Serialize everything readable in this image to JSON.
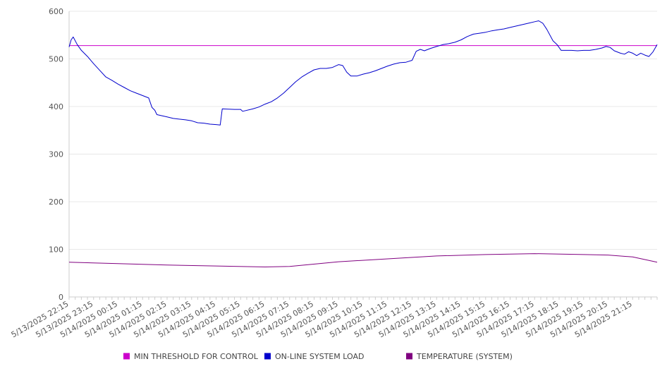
{
  "chart_data": {
    "type": "line",
    "title": "",
    "xlabel": "",
    "ylabel": "",
    "ylim": [
      0,
      600
    ],
    "y_ticks": [
      0,
      100,
      200,
      300,
      400,
      500,
      600
    ],
    "grid": "horizontal",
    "legend_position": "bottom",
    "x_tick_labels": [
      "5/13/2025 22:15",
      "5/13/2025 23:15",
      "5/14/2025 00:15",
      "5/14/2025 01:15",
      "5/14/2025 02:15",
      "5/14/2025 03:15",
      "5/14/2025 04:15",
      "5/14/2025 05:15",
      "5/14/2025 06:15",
      "5/14/2025 07:15",
      "5/14/2025 08:15",
      "5/14/2025 09:15",
      "5/14/2025 10:15",
      "5/14/2025 11:15",
      "5/14/2025 12:15",
      "5/14/2025 13:15",
      "5/14/2025 14:15",
      "5/14/2025 15:15",
      "5/14/2025 16:15",
      "5/14/2025 17:15",
      "5/14/2025 18:15",
      "5/14/2025 19:15",
      "5/14/2025 20:15",
      "5/14/2025 21:15"
    ],
    "x_start": "5/13/2025 22:15",
    "x_end": "5/14/2025 22:15",
    "series": [
      {
        "name": "MIN THRESHOLD FOR CONTROL",
        "color": "#cc00cc",
        "points": [
          [
            "5/13/2025 22:15",
            528
          ],
          [
            "5/14/2025 22:15",
            528
          ]
        ]
      },
      {
        "name": "ON-LINE SYSTEM LOAD",
        "color": "#0000cc",
        "points": [
          [
            "5/13/2025 22:15",
            525
          ],
          [
            "5/13/2025 22:20",
            540
          ],
          [
            "5/13/2025 22:25",
            546
          ],
          [
            "5/13/2025 22:35",
            530
          ],
          [
            "5/13/2025 22:45",
            518
          ],
          [
            "5/13/2025 23:00",
            505
          ],
          [
            "5/13/2025 23:15",
            490
          ],
          [
            "5/13/2025 23:30",
            476
          ],
          [
            "5/13/2025 23:45",
            462
          ],
          [
            "5/14/2025 00:00",
            455
          ],
          [
            "5/14/2025 00:15",
            447
          ],
          [
            "5/14/2025 00:30",
            440
          ],
          [
            "5/14/2025 00:45",
            433
          ],
          [
            "5/14/2025 01:00",
            428
          ],
          [
            "5/14/2025 01:15",
            423
          ],
          [
            "5/14/2025 01:30",
            418
          ],
          [
            "5/14/2025 01:38",
            398
          ],
          [
            "5/14/2025 01:45",
            392
          ],
          [
            "5/14/2025 01:50",
            383
          ],
          [
            "5/14/2025 02:15",
            378
          ],
          [
            "5/14/2025 02:30",
            375
          ],
          [
            "5/14/2025 03:00",
            372
          ],
          [
            "5/14/2025 03:15",
            370
          ],
          [
            "5/14/2025 03:30",
            366
          ],
          [
            "5/14/2025 03:45",
            365
          ],
          [
            "5/14/2025 04:00",
            363
          ],
          [
            "5/14/2025 04:15",
            362
          ],
          [
            "5/14/2025 04:25",
            361
          ],
          [
            "5/14/2025 04:30",
            395
          ],
          [
            "5/14/2025 05:00",
            394
          ],
          [
            "5/14/2025 05:15",
            394
          ],
          [
            "5/14/2025 05:20",
            390
          ],
          [
            "5/14/2025 05:45",
            395
          ],
          [
            "5/14/2025 06:00",
            399
          ],
          [
            "5/14/2025 06:15",
            405
          ],
          [
            "5/14/2025 06:30",
            410
          ],
          [
            "5/14/2025 06:45",
            418
          ],
          [
            "5/14/2025 07:00",
            428
          ],
          [
            "5/14/2025 07:15",
            440
          ],
          [
            "5/14/2025 07:30",
            452
          ],
          [
            "5/14/2025 07:45",
            462
          ],
          [
            "5/14/2025 08:00",
            470
          ],
          [
            "5/14/2025 08:15",
            477
          ],
          [
            "5/14/2025 08:30",
            480
          ],
          [
            "5/14/2025 08:45",
            480
          ],
          [
            "5/14/2025 09:00",
            482
          ],
          [
            "5/14/2025 09:15",
            488
          ],
          [
            "5/14/2025 09:25",
            486
          ],
          [
            "5/14/2025 09:35",
            472
          ],
          [
            "5/14/2025 09:45",
            464
          ],
          [
            "5/14/2025 10:00",
            464
          ],
          [
            "5/14/2025 10:15",
            468
          ],
          [
            "5/14/2025 10:30",
            471
          ],
          [
            "5/14/2025 10:45",
            475
          ],
          [
            "5/14/2025 11:00",
            480
          ],
          [
            "5/14/2025 11:15",
            485
          ],
          [
            "5/14/2025 11:30",
            489
          ],
          [
            "5/14/2025 11:45",
            492
          ],
          [
            "5/14/2025 12:00",
            493
          ],
          [
            "5/14/2025 12:15",
            497
          ],
          [
            "5/14/2025 12:25",
            516
          ],
          [
            "5/14/2025 12:35",
            520
          ],
          [
            "5/14/2025 12:45",
            517
          ],
          [
            "5/14/2025 13:00",
            522
          ],
          [
            "5/14/2025 13:15",
            526
          ],
          [
            "5/14/2025 13:30",
            530
          ],
          [
            "5/14/2025 13:45",
            532
          ],
          [
            "5/14/2025 14:00",
            535
          ],
          [
            "5/14/2025 14:15",
            540
          ],
          [
            "5/14/2025 14:30",
            547
          ],
          [
            "5/14/2025 14:45",
            552
          ],
          [
            "5/14/2025 15:00",
            554
          ],
          [
            "5/14/2025 15:15",
            556
          ],
          [
            "5/14/2025 15:30",
            559
          ],
          [
            "5/14/2025 15:45",
            561
          ],
          [
            "5/14/2025 16:00",
            563
          ],
          [
            "5/14/2025 16:15",
            566
          ],
          [
            "5/14/2025 16:30",
            569
          ],
          [
            "5/14/2025 16:45",
            572
          ],
          [
            "5/14/2025 17:00",
            575
          ],
          [
            "5/14/2025 17:15",
            578
          ],
          [
            "5/14/2025 17:25",
            580
          ],
          [
            "5/14/2025 17:35",
            575
          ],
          [
            "5/14/2025 17:45",
            562
          ],
          [
            "5/14/2025 18:00",
            538
          ],
          [
            "5/14/2025 18:10",
            530
          ],
          [
            "5/14/2025 18:20",
            518
          ],
          [
            "5/14/2025 18:30",
            518
          ],
          [
            "5/14/2025 18:45",
            518
          ],
          [
            "5/14/2025 19:00",
            517
          ],
          [
            "5/14/2025 19:15",
            518
          ],
          [
            "5/14/2025 19:30",
            518
          ],
          [
            "5/14/2025 19:45",
            520
          ],
          [
            "5/14/2025 20:00",
            523
          ],
          [
            "5/14/2025 20:10",
            526
          ],
          [
            "5/14/2025 20:20",
            524
          ],
          [
            "5/14/2025 20:30",
            517
          ],
          [
            "5/14/2025 20:45",
            512
          ],
          [
            "5/14/2025 20:55",
            510
          ],
          [
            "5/14/2025 21:05",
            515
          ],
          [
            "5/14/2025 21:15",
            512
          ],
          [
            "5/14/2025 21:25",
            507
          ],
          [
            "5/14/2025 21:35",
            512
          ],
          [
            "5/14/2025 21:45",
            508
          ],
          [
            "5/14/2025 21:55",
            505
          ],
          [
            "5/14/2025 22:05",
            515
          ],
          [
            "5/14/2025 22:15",
            530
          ]
        ]
      },
      {
        "name": "TEMPERATURE (SYSTEM)",
        "color": "#800080",
        "points": [
          [
            "5/13/2025 22:15",
            73
          ],
          [
            "5/14/2025 00:15",
            70
          ],
          [
            "5/14/2025 02:15",
            67
          ],
          [
            "5/14/2025 04:15",
            65
          ],
          [
            "5/14/2025 06:15",
            63
          ],
          [
            "5/14/2025 07:15",
            64
          ],
          [
            "5/14/2025 09:15",
            74
          ],
          [
            "5/14/2025 11:15",
            80
          ],
          [
            "5/14/2025 13:15",
            86
          ],
          [
            "5/14/2025 15:15",
            89
          ],
          [
            "5/14/2025 17:15",
            91
          ],
          [
            "5/14/2025 19:15",
            89
          ],
          [
            "5/14/2025 20:15",
            88
          ],
          [
            "5/14/2025 21:15",
            84
          ],
          [
            "5/14/2025 22:15",
            73
          ]
        ]
      }
    ]
  }
}
